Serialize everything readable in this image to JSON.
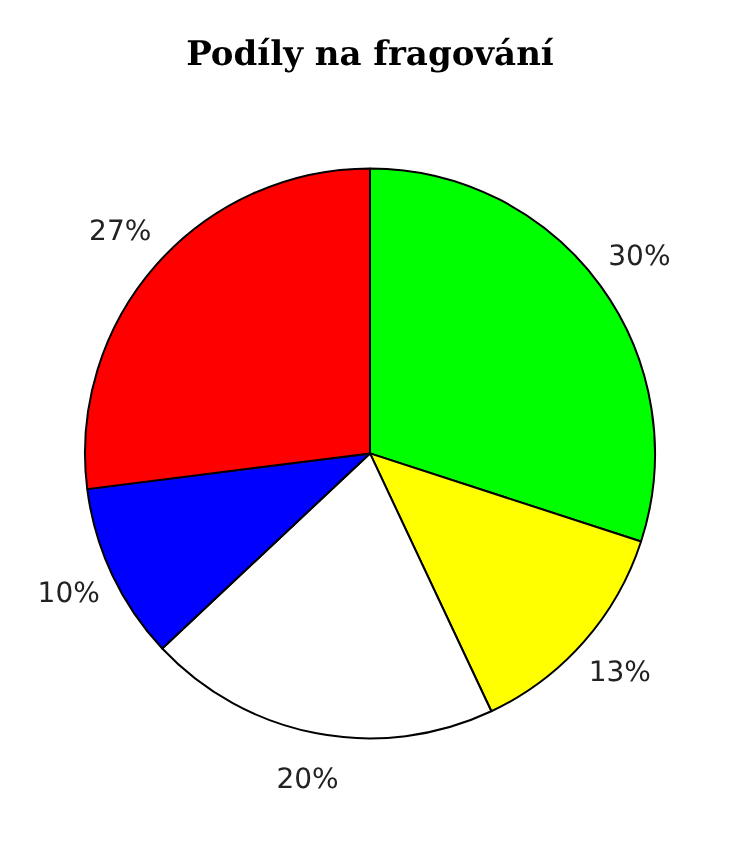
{
  "chart_data": {
    "type": "pie",
    "title": "Podíly na fragování",
    "categories": [
      null,
      null,
      null,
      null,
      null
    ],
    "values": [
      30,
      13,
      20,
      10,
      27
    ],
    "colors": [
      "#00ff00",
      "#ffff00",
      "#ffffff",
      "#0000ff",
      "#ff0000"
    ],
    "value_labels": [
      "30%",
      "13%",
      "20%",
      "10%",
      "27%"
    ],
    "legend": false
  }
}
